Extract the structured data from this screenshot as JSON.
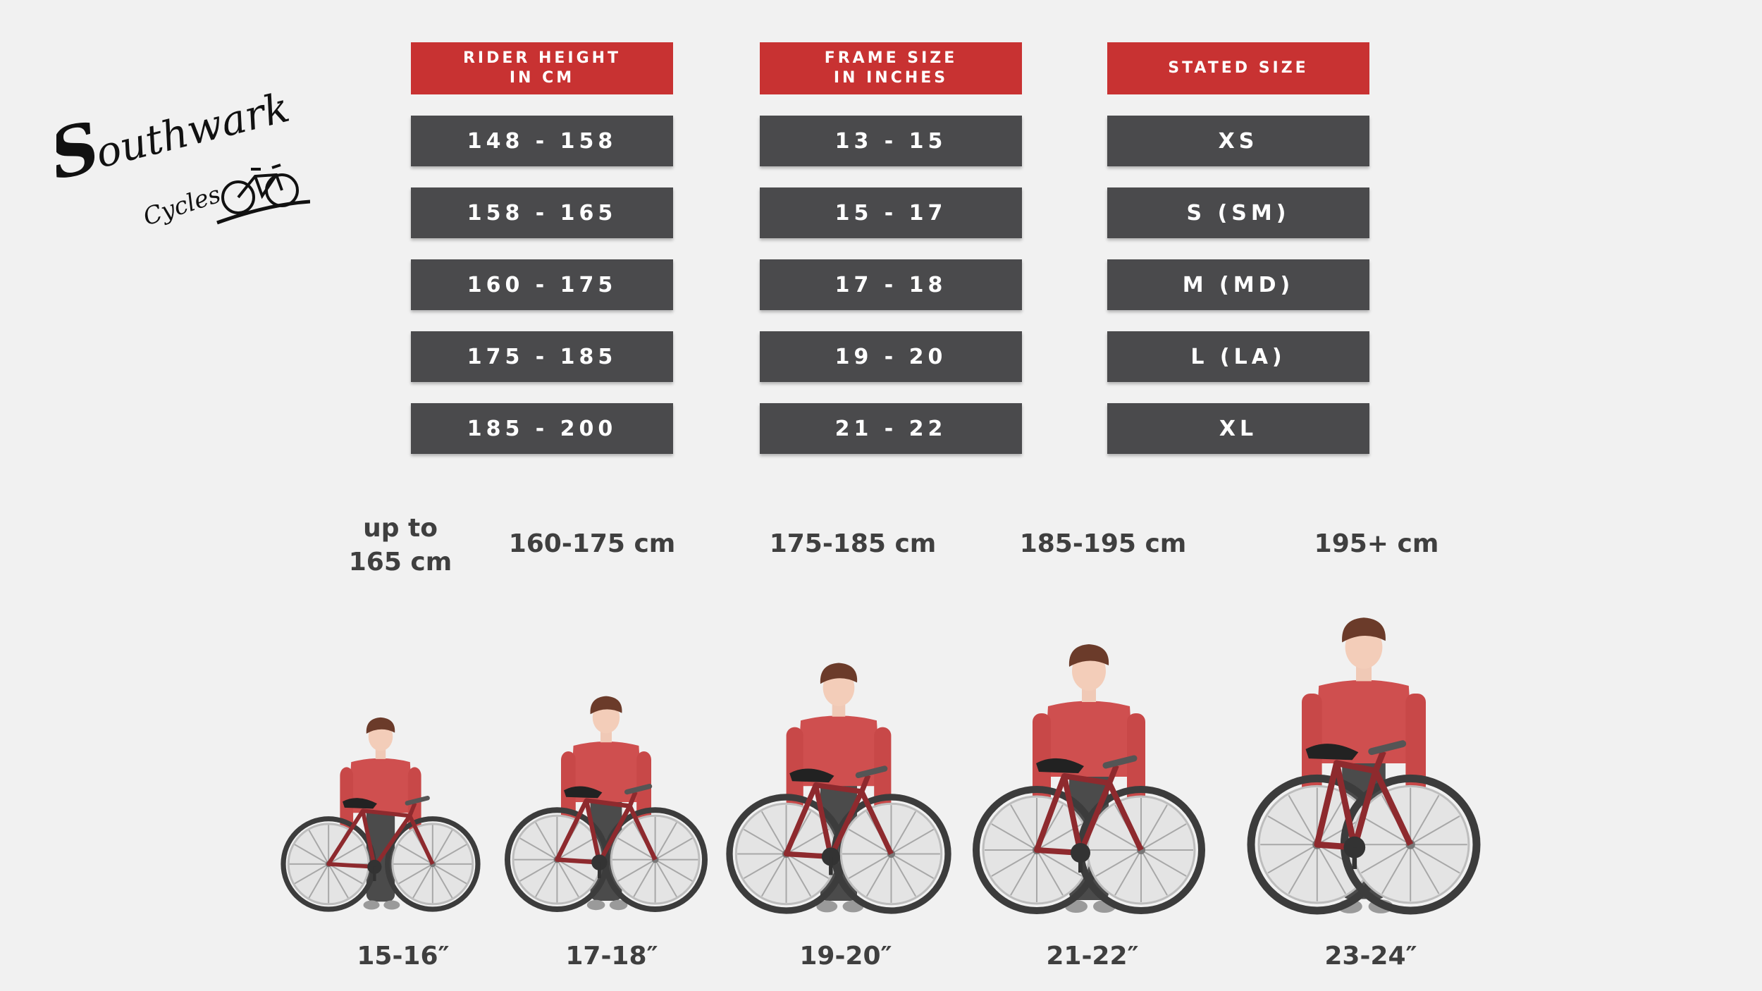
{
  "brand": {
    "logo_text": "Southwark",
    "logo_sub": "Cycles"
  },
  "colors": {
    "header_red": "#c83232",
    "cell_gray": "#4a4a4c",
    "shirt": "#cf4f4f",
    "frame": "#8e2a2e",
    "text": "#3f3f3f"
  },
  "table": {
    "headers": [
      "RIDER HEIGHT\nIN CM",
      "FRAME SIZE\nIN INCHES",
      "STATED SIZE"
    ],
    "rider_height": [
      "148 - 158",
      "158 - 165",
      "160 - 175",
      "175 - 185",
      "185 - 200"
    ],
    "frame_size": [
      "13 - 15",
      "15 - 17",
      "17 - 18",
      "19 - 20",
      "21 - 22"
    ],
    "stated_size": [
      "XS",
      "S (SM)",
      "M (MD)",
      "L (LA)",
      "XL"
    ]
  },
  "illustration": {
    "height_labels": [
      "up to\n165 cm",
      "160-175 cm",
      "175-185 cm",
      "185-195 cm",
      "195+ cm"
    ],
    "frame_labels": [
      "15-16″",
      "17-18″",
      "19-20″",
      "21-22″",
      "23-24″"
    ]
  }
}
